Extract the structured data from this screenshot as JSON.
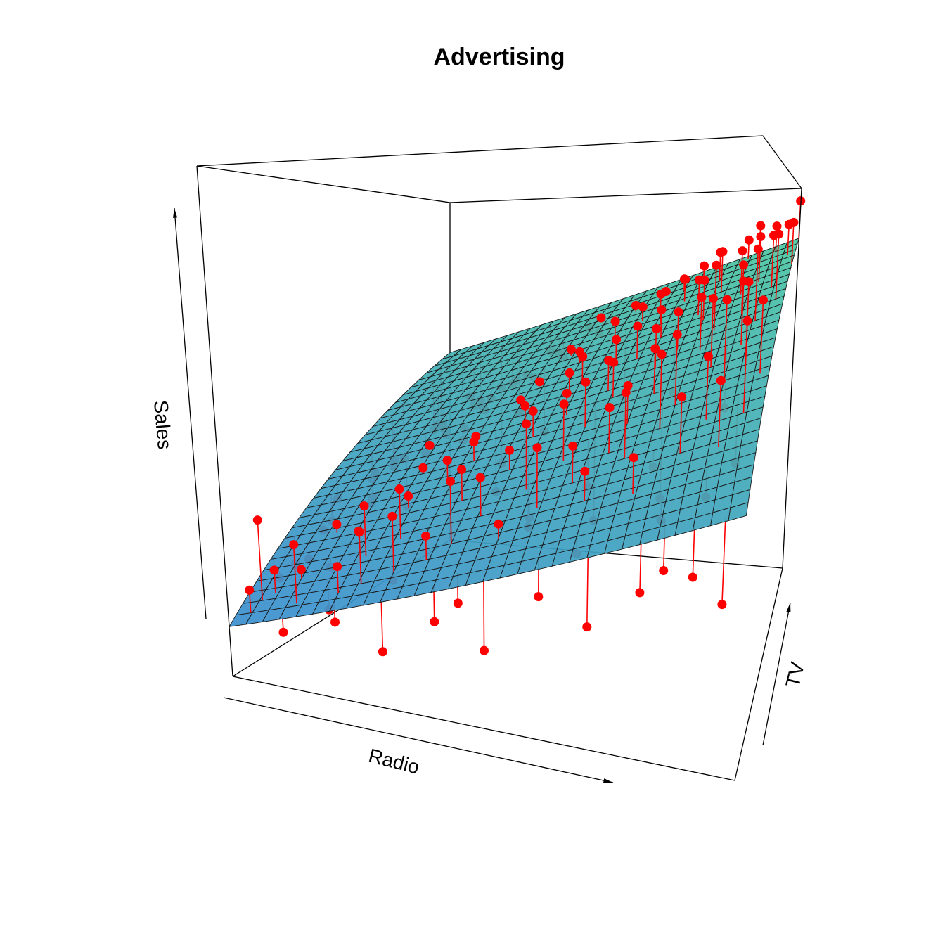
{
  "chart_data": {
    "type": "scatter",
    "subtype": "3d-scatter-with-regression-plane",
    "title": "Advertising",
    "xlabel": "Radio",
    "ylabel": "TV",
    "zlabel": "Sales",
    "xlim": [
      0,
      50
    ],
    "ylim": [
      0,
      300
    ],
    "zlim": [
      0,
      30
    ],
    "ticks": "none",
    "grid": false,
    "legend": "none",
    "colors": {
      "points": "#ff0000",
      "residual_lines": "#ff0000",
      "plane_low": "#3b8fd0",
      "plane_high": "#4cc9a0",
      "plane_mesh": "#1a1a1a",
      "box": "#000000"
    },
    "plane": {
      "intercept": 2.92,
      "slope_radio": 0.188,
      "slope_tv": 0.0458,
      "grid": 30
    },
    "points": [
      [
        1.5,
        10,
        5
      ],
      [
        6,
        12,
        8
      ],
      [
        2,
        20,
        9
      ],
      [
        10,
        15,
        7
      ],
      [
        3,
        25,
        6
      ],
      [
        8,
        30,
        4
      ],
      [
        12,
        20,
        9
      ],
      [
        5,
        35,
        6
      ],
      [
        15,
        25,
        10
      ],
      [
        18,
        30,
        9
      ],
      [
        2,
        45,
        5
      ],
      [
        7,
        50,
        6
      ],
      [
        11,
        45,
        10
      ],
      [
        20,
        40,
        12
      ],
      [
        25,
        35,
        10
      ],
      [
        4,
        60,
        6
      ],
      [
        9,
        65,
        8
      ],
      [
        14,
        55,
        11
      ],
      [
        22,
        60,
        12
      ],
      [
        28,
        55,
        14
      ],
      [
        33,
        50,
        13
      ],
      [
        38,
        45,
        14
      ],
      [
        1,
        80,
        5
      ],
      [
        6,
        75,
        8
      ],
      [
        13,
        85,
        10
      ],
      [
        19,
        80,
        12
      ],
      [
        26,
        75,
        15
      ],
      [
        31,
        70,
        14
      ],
      [
        36,
        80,
        17
      ],
      [
        42,
        70,
        17
      ],
      [
        46,
        65,
        18
      ],
      [
        3,
        95,
        7
      ],
      [
        8,
        100,
        9
      ],
      [
        16,
        105,
        12
      ],
      [
        23,
        100,
        13
      ],
      [
        29,
        95,
        16
      ],
      [
        34,
        90,
        16
      ],
      [
        39,
        100,
        19
      ],
      [
        44,
        95,
        19
      ],
      [
        48,
        90,
        21
      ],
      [
        2,
        120,
        7
      ],
      [
        7,
        115,
        9
      ],
      [
        12,
        125,
        11
      ],
      [
        18,
        120,
        13
      ],
      [
        24,
        130,
        15
      ],
      [
        30,
        125,
        17
      ],
      [
        35,
        115,
        17
      ],
      [
        40,
        120,
        20
      ],
      [
        45,
        130,
        22
      ],
      [
        49,
        125,
        22
      ],
      [
        1,
        140,
        8
      ],
      [
        5,
        145,
        10
      ],
      [
        11,
        150,
        12
      ],
      [
        17,
        140,
        13
      ],
      [
        22,
        150,
        15
      ],
      [
        27,
        145,
        16
      ],
      [
        32,
        150,
        18
      ],
      [
        37,
        140,
        19
      ],
      [
        43,
        150,
        22
      ],
      [
        47,
        145,
        23
      ],
      [
        3,
        165,
        9
      ],
      [
        9,
        170,
        11
      ],
      [
        14,
        165,
        13
      ],
      [
        20,
        175,
        15
      ],
      [
        26,
        170,
        17
      ],
      [
        31,
        160,
        18
      ],
      [
        36,
        170,
        20
      ],
      [
        41,
        175,
        22
      ],
      [
        46,
        165,
        23
      ],
      [
        4,
        185,
        10
      ],
      [
        10,
        190,
        12
      ],
      [
        15,
        185,
        14
      ],
      [
        21,
        195,
        16
      ],
      [
        27,
        180,
        18
      ],
      [
        33,
        190,
        20
      ],
      [
        38,
        185,
        21
      ],
      [
        42,
        195,
        24
      ],
      [
        47,
        190,
        25
      ],
      [
        2,
        205,
        9
      ],
      [
        8,
        210,
        12
      ],
      [
        13,
        205,
        14
      ],
      [
        19,
        215,
        16
      ],
      [
        25,
        210,
        18
      ],
      [
        30,
        200,
        19
      ],
      [
        35,
        210,
        21
      ],
      [
        40,
        215,
        23
      ],
      [
        45,
        205,
        24
      ],
      [
        49,
        210,
        26
      ],
      [
        1,
        230,
        9
      ],
      [
        6,
        225,
        12
      ],
      [
        12,
        235,
        14
      ],
      [
        17,
        230,
        16
      ],
      [
        23,
        225,
        18
      ],
      [
        28,
        235,
        20
      ],
      [
        34,
        230,
        22
      ],
      [
        39,
        225,
        23
      ],
      [
        44,
        235,
        25
      ],
      [
        48,
        230,
        26
      ],
      [
        3,
        250,
        11
      ],
      [
        8,
        255,
        13
      ],
      [
        14,
        245,
        15
      ],
      [
        20,
        255,
        17
      ],
      [
        25,
        250,
        19
      ],
      [
        31,
        245,
        21
      ],
      [
        36,
        255,
        23
      ],
      [
        41,
        250,
        25
      ],
      [
        46,
        245,
        26
      ],
      [
        50,
        255,
        27
      ],
      [
        2,
        270,
        11
      ],
      [
        7,
        275,
        13
      ],
      [
        13,
        265,
        15
      ],
      [
        18,
        275,
        17
      ],
      [
        24,
        270,
        20
      ],
      [
        29,
        265,
        21
      ],
      [
        35,
        275,
        23
      ],
      [
        40,
        270,
        25
      ],
      [
        45,
        280,
        27
      ],
      [
        49,
        275,
        27
      ],
      [
        4,
        290,
        13
      ],
      [
        9,
        285,
        14
      ],
      [
        15,
        295,
        17
      ],
      [
        21,
        290,
        19
      ],
      [
        27,
        295,
        21
      ],
      [
        32,
        285,
        22
      ],
      [
        37,
        290,
        24
      ],
      [
        43,
        295,
        26
      ],
      [
        47,
        290,
        27
      ],
      [
        50,
        298,
        29
      ],
      [
        5,
        5,
        3
      ],
      [
        10,
        8,
        4
      ],
      [
        20,
        5,
        5
      ],
      [
        30,
        10,
        7
      ],
      [
        40,
        5,
        8
      ],
      [
        25,
        2,
        4
      ],
      [
        35,
        3,
        6
      ],
      [
        45,
        8,
        9
      ],
      [
        15,
        2,
        3
      ],
      [
        48,
        3,
        8
      ],
      [
        22,
        12,
        6
      ],
      [
        42,
        15,
        9
      ],
      [
        30,
        150,
        8
      ],
      [
        38,
        140,
        10
      ],
      [
        20,
        220,
        12
      ],
      [
        44,
        180,
        15
      ],
      [
        28,
        260,
        14
      ],
      [
        12,
        280,
        12
      ],
      [
        36,
        230,
        15
      ],
      [
        24,
        120,
        8
      ],
      [
        47,
        110,
        13
      ],
      [
        16,
        200,
        10
      ],
      [
        33,
        30,
        9
      ],
      [
        27,
        60,
        10
      ],
      [
        41,
        40,
        11
      ],
      [
        9,
        140,
        8
      ],
      [
        18,
        160,
        9
      ],
      [
        45,
        60,
        12
      ],
      [
        6,
        260,
        10
      ],
      [
        31,
        110,
        11
      ],
      [
        39,
        80,
        13
      ],
      [
        14,
        40,
        6
      ]
    ]
  }
}
